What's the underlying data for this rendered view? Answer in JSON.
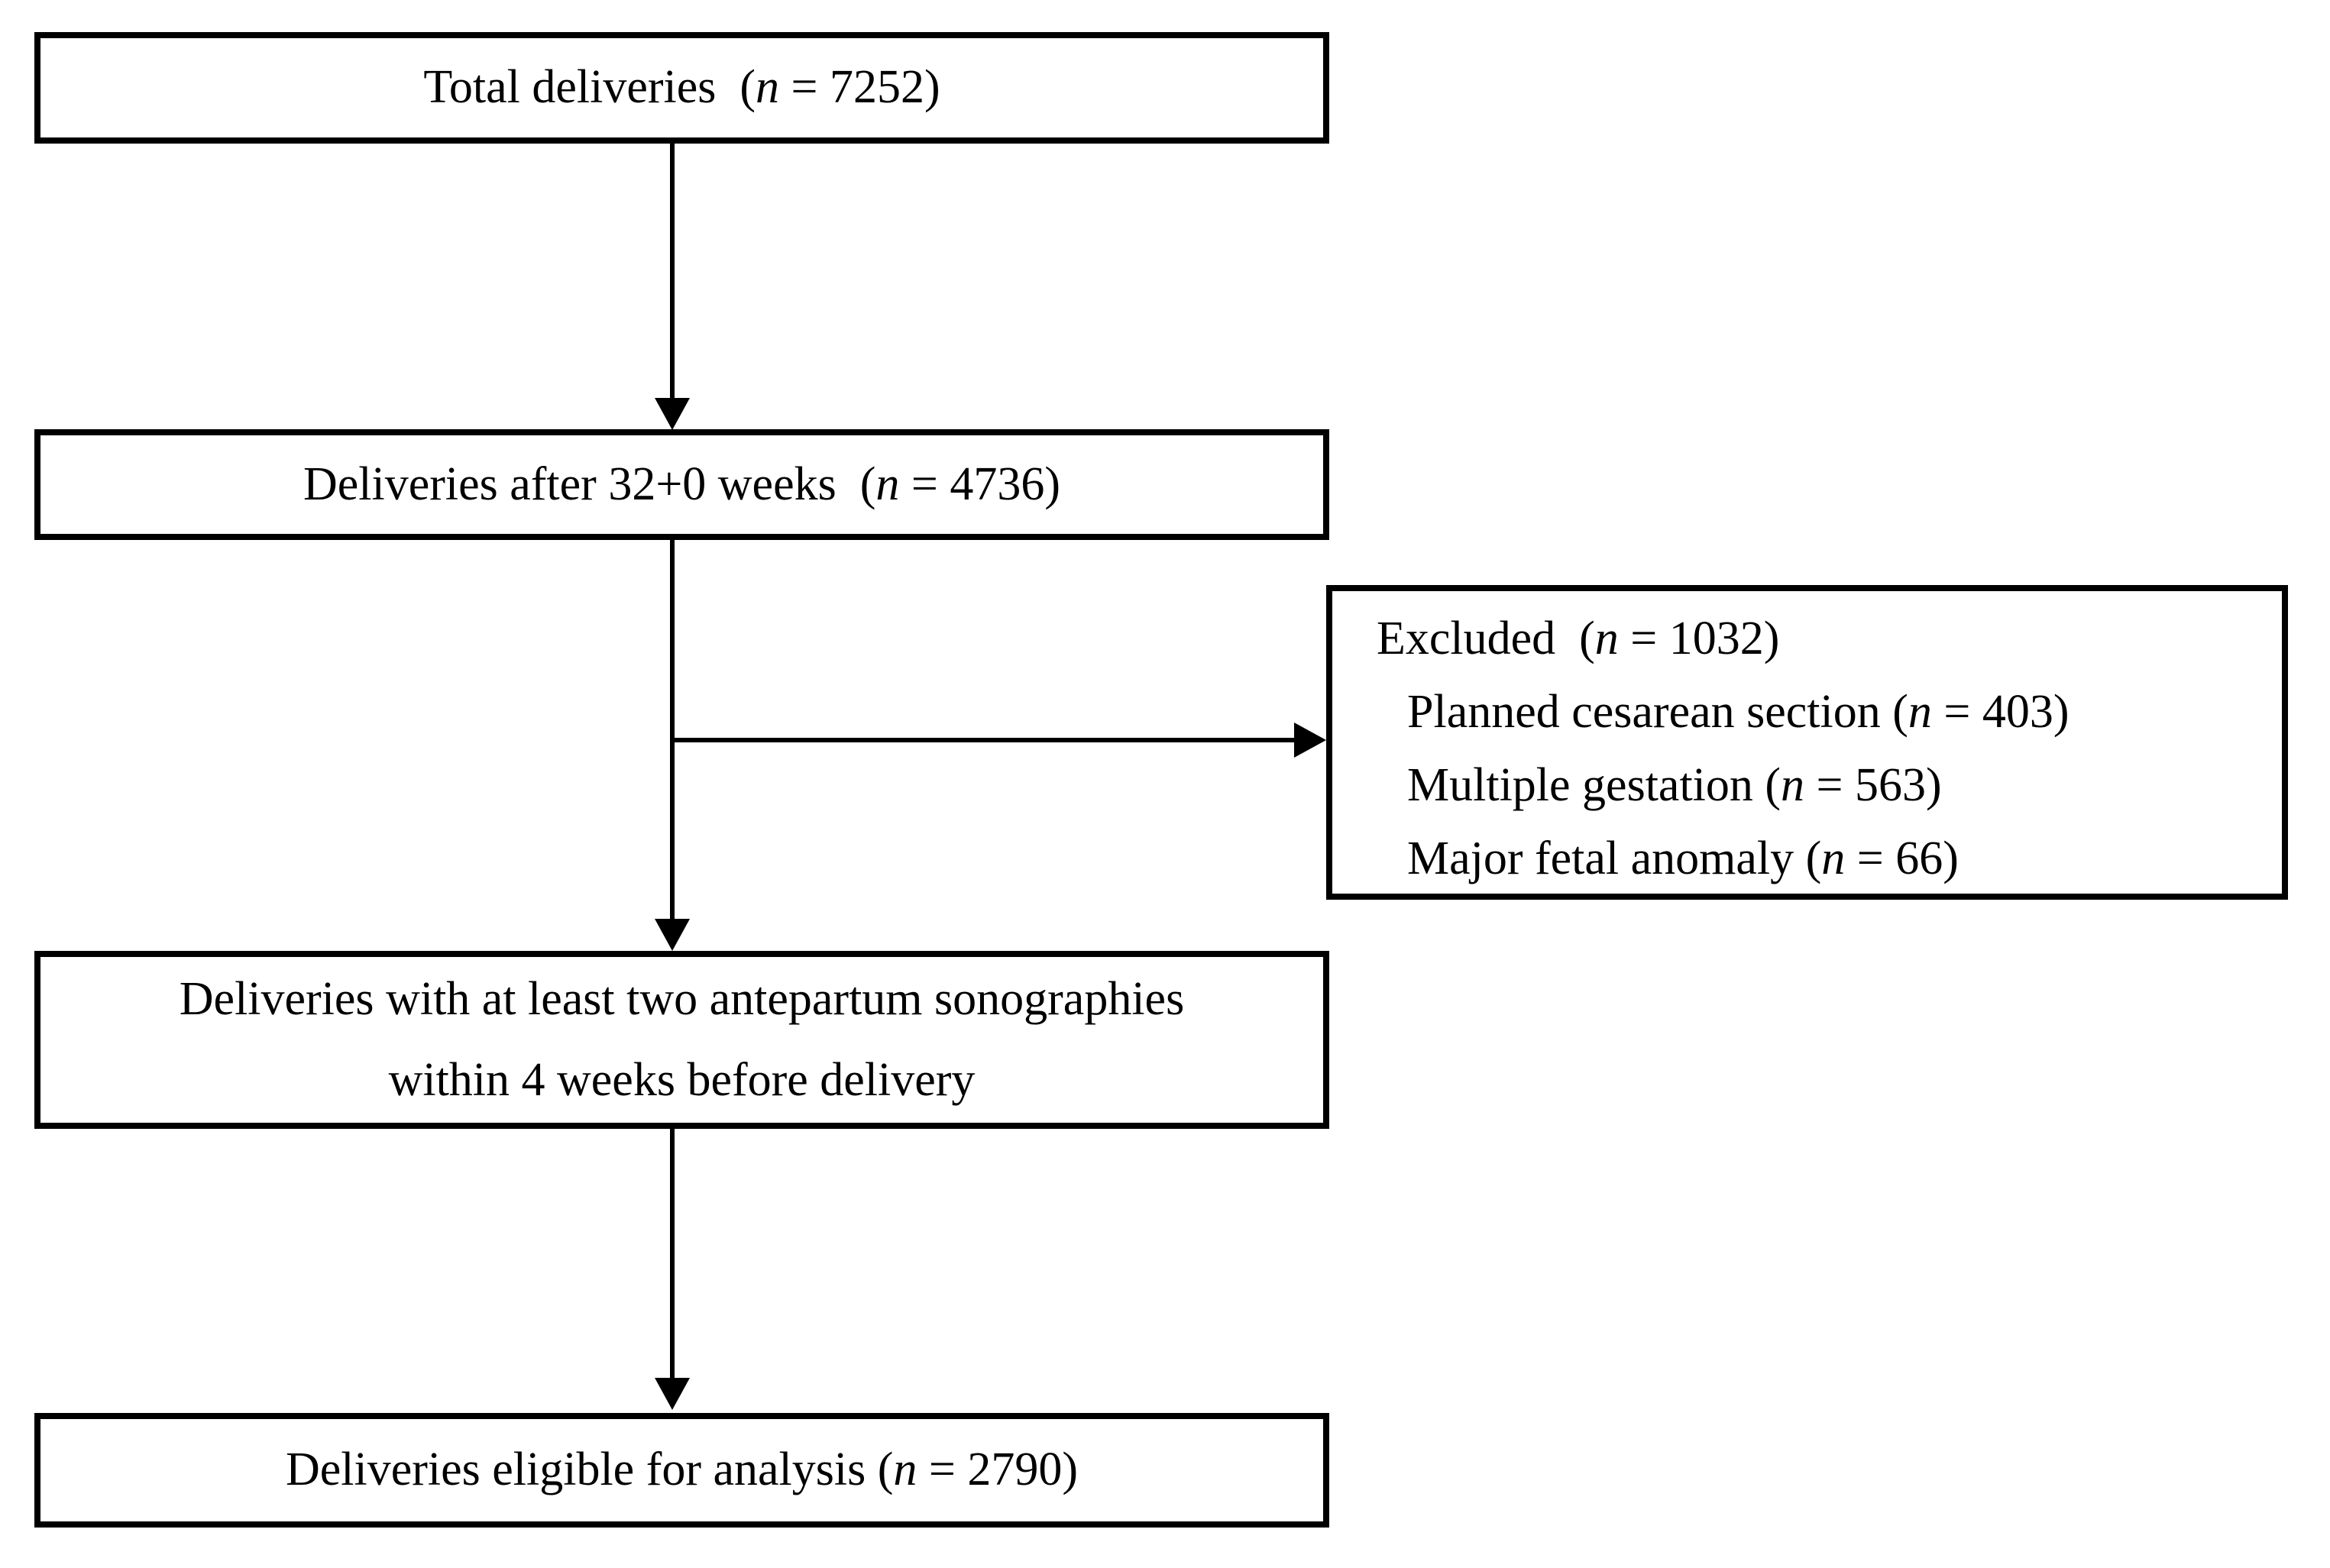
{
  "diagram": {
    "title_semantic": "Study inclusion flow diagram",
    "colors": {
      "border": "#000000",
      "background": "#ffffff",
      "text": "#000000"
    },
    "boxes": {
      "total": {
        "pre": "Total deliveries  (",
        "var": "n",
        "post": " = 7252)"
      },
      "after32": {
        "pre": "Deliveries after 32+0 weeks  (",
        "var": "n",
        "post": " = 4736)"
      },
      "excluded": {
        "title": {
          "pre": "Excluded  (",
          "var": "n",
          "post": " = 1032)"
        },
        "items": [
          {
            "pre": "Planned cesarean section (",
            "var": "n",
            "post": " = 403)"
          },
          {
            "pre": "Multiple gestation (",
            "var": "n",
            "post": " = 563)"
          },
          {
            "pre": "Major fetal anomaly (",
            "var": "n",
            "post": " = 66)"
          }
        ]
      },
      "sono": {
        "line1": "Deliveries with at least two antepartum sonographies",
        "line2": "within 4 weeks before delivery"
      },
      "eligible": {
        "pre": "Deliveries eligible for analysis (",
        "var": "n",
        "post": " = 2790)"
      }
    }
  }
}
